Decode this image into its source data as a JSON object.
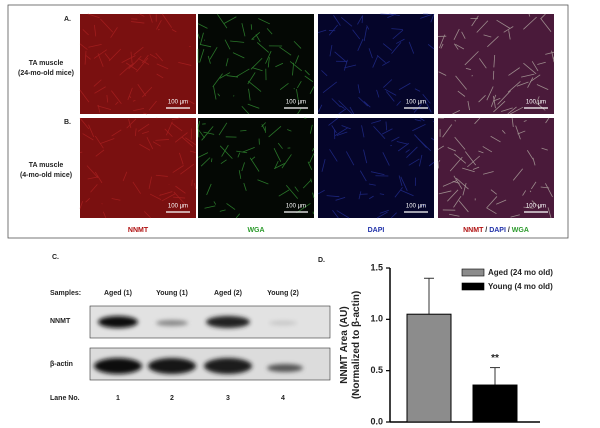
{
  "panel_ab": {
    "label_a": "A.",
    "label_b": "B.",
    "row_a": [
      "TA muscle",
      "(24-mo-old mice)"
    ],
    "row_b": [
      "TA muscle",
      "(4-mo-old mice)"
    ],
    "scale_bar": "100 µm",
    "columns": [
      "NNMT",
      "WGA",
      "DAPI"
    ],
    "merged_column": [
      "NNMT",
      " / ",
      "DAPI",
      " / ",
      "WGA"
    ]
  },
  "panel_c": {
    "label": "C.",
    "samples_label": "Samples:",
    "samples": [
      "Aged (1)",
      "Young (1)",
      "Aged (2)",
      "Young (2)"
    ],
    "rows": [
      "NNMT",
      "β-actin"
    ],
    "lane_label": "Lane No.",
    "lanes": [
      "1",
      "2",
      "3",
      "4"
    ]
  },
  "chart_data": {
    "type": "bar",
    "panel_label": "D.",
    "y_label": [
      "NNMT Area (AU)",
      "(Normalized to β-actin)"
    ],
    "series": [
      {
        "name": "Aged (24 mo old)",
        "color": "#8c8c8c",
        "values": [
          1.05
        ],
        "errors": [
          0.35
        ]
      },
      {
        "name": "Young (4 mo old)",
        "color": "#000000",
        "values": [
          0.36
        ],
        "errors": [
          0.17
        ]
      }
    ],
    "annotation": "**",
    "ylim": [
      0,
      1.5
    ],
    "yticks": [
      {
        "value": 0,
        "label": "0.0"
      },
      {
        "value": 0.5,
        "label": "0.5"
      },
      {
        "value": 1,
        "label": "1.0"
      },
      {
        "value": 1.5,
        "label": "1.5"
      }
    ],
    "legend": "top-right"
  }
}
